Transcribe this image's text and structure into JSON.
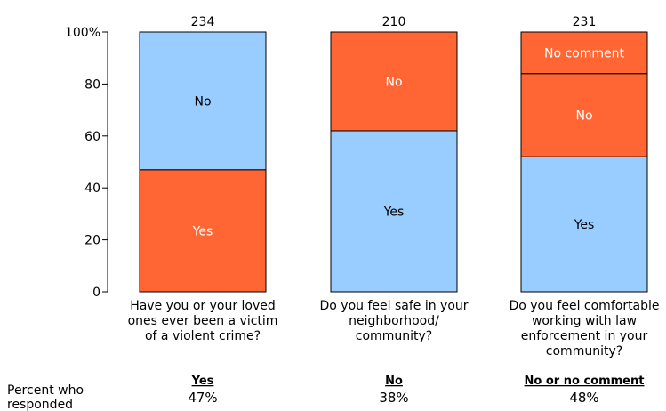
{
  "chart_data": {
    "type": "bar",
    "stacked": true,
    "ylim": [
      0,
      100
    ],
    "yticks": [
      0,
      20,
      40,
      60,
      80,
      100
    ],
    "ytick_labels": [
      "0",
      "20",
      "40",
      "60",
      "80",
      "100%"
    ],
    "grid": false,
    "categories": [
      [
        "Have you or your loved",
        "ones ever been a victim",
        "of a violent crime?"
      ],
      [
        "Do you feel safe in your",
        "neighborhood/",
        "community?"
      ],
      [
        "Do you feel comfortable",
        "working with law",
        "enforcement in your",
        "community?"
      ]
    ],
    "totals": [
      "234",
      "210",
      "231"
    ],
    "bars": [
      [
        {
          "label": "Yes",
          "value": 47,
          "color": "#ff6633"
        },
        {
          "label": "No",
          "value": 53,
          "color": "#99ccff"
        }
      ],
      [
        {
          "label": "Yes",
          "value": 62,
          "color": "#99ccff"
        },
        {
          "label": "No",
          "value": 38,
          "color": "#ff6633"
        }
      ],
      [
        {
          "label": "Yes",
          "value": 52,
          "color": "#99ccff"
        },
        {
          "label": "No",
          "value": 32,
          "color": "#ff6633"
        },
        {
          "label": "No comment",
          "value": 16,
          "color": "#ff6633"
        }
      ]
    ],
    "summary": {
      "row_label": [
        "Percent who",
        "responded"
      ],
      "headers": [
        "Yes",
        "No",
        "No or no comment"
      ],
      "values": [
        "47%",
        "38%",
        "48%"
      ]
    }
  }
}
